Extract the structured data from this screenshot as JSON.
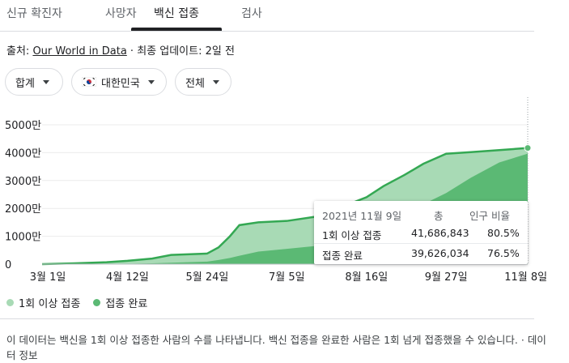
{
  "tabs": [
    "신규 확진자",
    "사망자",
    "백신 접종",
    "검사"
  ],
  "source": {
    "prefix": "출처: ",
    "link": "Our World in Data",
    "suffix": " · 최종 업데이트: 2일 전"
  },
  "filters": {
    "aggregate": "합계",
    "region": "대한민국",
    "scope": "전체"
  },
  "tooltip": {
    "date": "2021년 11월 9일",
    "col_total": "총",
    "col_ratio": "인구 비율",
    "rows": [
      {
        "label": "1회 이상 접종",
        "total": "41,686,843",
        "ratio": "80.5%"
      },
      {
        "label": "접종 완료",
        "total": "39,626,034",
        "ratio": "76.5%"
      }
    ]
  },
  "legend": [
    "1회 이상 접종",
    "접종 완료"
  ],
  "note": "이 데이터는 백신을 1회 이상 접종한 사람의 수를 나타냅니다. 백신 접종을 완료한 사람은 1회 넘게 접종했을 수 있습니다. · 데이터 정보",
  "colors": {
    "partial": "#a8dab5",
    "full": "#5bb974",
    "line": "#34a853"
  },
  "chart_data": {
    "type": "area",
    "y_tick_labels": [
      "0",
      "1000만",
      "2000만",
      "3000만",
      "4000만",
      "5000만"
    ],
    "ylim": [
      0,
      50000000
    ],
    "x_tick_labels": [
      "3월 1일",
      "4월 12일",
      "5월 24일",
      "7월 5일",
      "8월 16일",
      "9월 27일",
      "11월 8일"
    ],
    "x": [
      "2021-02-26",
      "2021-03-15",
      "2021-04-01",
      "2021-04-12",
      "2021-04-25",
      "2021-05-05",
      "2021-05-24",
      "2021-05-30",
      "2021-06-05",
      "2021-06-10",
      "2021-06-20",
      "2021-07-05",
      "2021-07-20",
      "2021-08-01",
      "2021-08-16",
      "2021-08-25",
      "2021-09-05",
      "2021-09-15",
      "2021-09-27",
      "2021-10-10",
      "2021-10-25",
      "2021-11-09"
    ],
    "series": [
      {
        "name": "1회 이상 접종",
        "values": [
          0,
          300000,
          700000,
          1200000,
          2000000,
          3300000,
          3800000,
          6000000,
          10000000,
          14000000,
          15000000,
          15500000,
          17000000,
          20000000,
          24000000,
          28000000,
          32000000,
          36000000,
          39600000,
          40200000,
          40900000,
          41686843
        ]
      },
      {
        "name": "접종 완료",
        "values": [
          0,
          20000,
          60000,
          100000,
          300000,
          500000,
          900000,
          1500000,
          2200000,
          3000000,
          4500000,
          5500000,
          6500000,
          8000000,
          10500000,
          13500000,
          17000000,
          21500000,
          25500000,
          31000000,
          36500000,
          39626034
        ]
      }
    ]
  }
}
